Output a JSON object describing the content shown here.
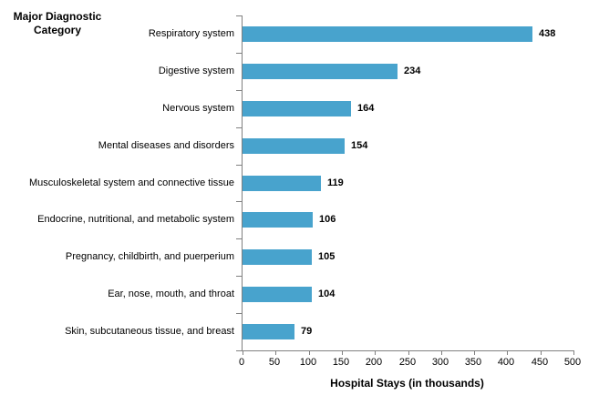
{
  "chart_data": {
    "type": "bar",
    "orientation": "horizontal",
    "y_axis_title": "Major Diagnostic Category",
    "xlabel": "Hospital Stays (in thousands)",
    "categories": [
      "Respiratory system",
      "Digestive system",
      "Nervous system",
      "Mental diseases and disorders",
      "Musculoskeletal system and connective tissue",
      "Endocrine, nutritional, and metabolic system",
      "Pregnancy, childbirth, and puerperium",
      "Ear, nose, mouth, and throat",
      "Skin, subcutaneous tissue, and breast"
    ],
    "values": [
      438,
      234,
      164,
      154,
      119,
      106,
      105,
      104,
      79
    ],
    "xlim": [
      0,
      500
    ],
    "x_ticks": [
      0,
      50,
      100,
      150,
      200,
      250,
      300,
      350,
      400,
      450,
      500
    ],
    "data_labels": [
      "438",
      "234",
      "164",
      "154",
      "119",
      "106",
      "105",
      "104",
      "79"
    ],
    "bar_color": "#48A3CD",
    "axis_color": "#808080",
    "text_color": "#000000",
    "grid": "off",
    "legend": "none"
  }
}
